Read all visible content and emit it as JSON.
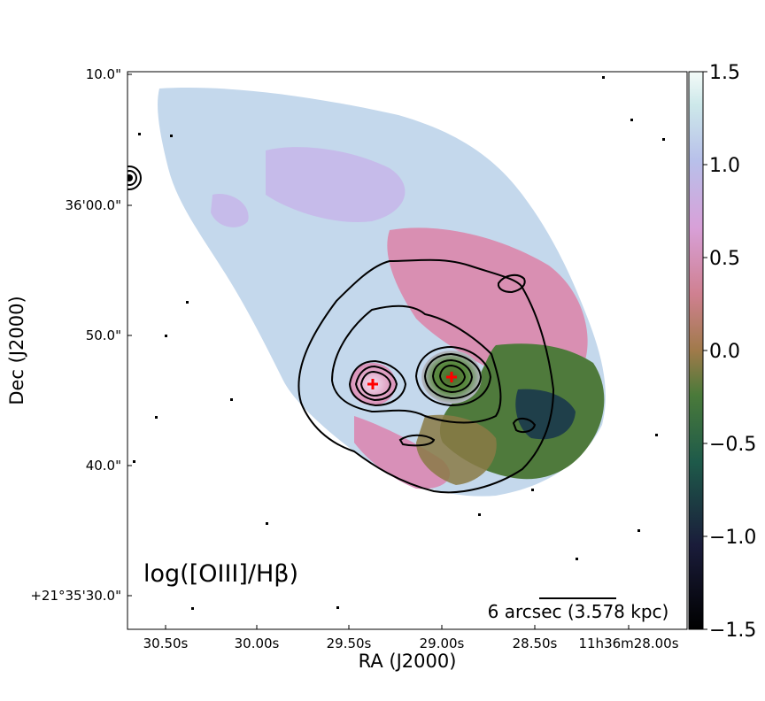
{
  "chart_data": {
    "type": "heatmap",
    "title": "",
    "xlabel": "RA (J2000)",
    "ylabel": "Dec (J2000)",
    "x_tick_labels": [
      "30.50s",
      "30.00s",
      "29.50s",
      "29.00s",
      "28.50s",
      "11h36m28.00s"
    ],
    "y_tick_labels": [
      "10.0\"",
      "36'00.0\"",
      "50.0\"",
      "40.0\"",
      "+21°35'30.0\""
    ],
    "annotation": "log([OIII]/Hβ)",
    "scalebar_label": "6 arcsec (3.578 kpc)",
    "colorbar": {
      "colormap": "cubehelix-like",
      "min": -1.5,
      "max": 1.5,
      "ticks": [
        1.5,
        1.0,
        0.5,
        0.0,
        -0.5,
        -1.0,
        -1.5
      ],
      "tick_labels": [
        "1.5",
        "1.0",
        "0.5",
        "0.0",
        "−0.5",
        "−1.0",
        "−1.5"
      ]
    },
    "nuclei_markers": 2,
    "contour_color": "#000000",
    "marker_color": "#ff0000"
  }
}
